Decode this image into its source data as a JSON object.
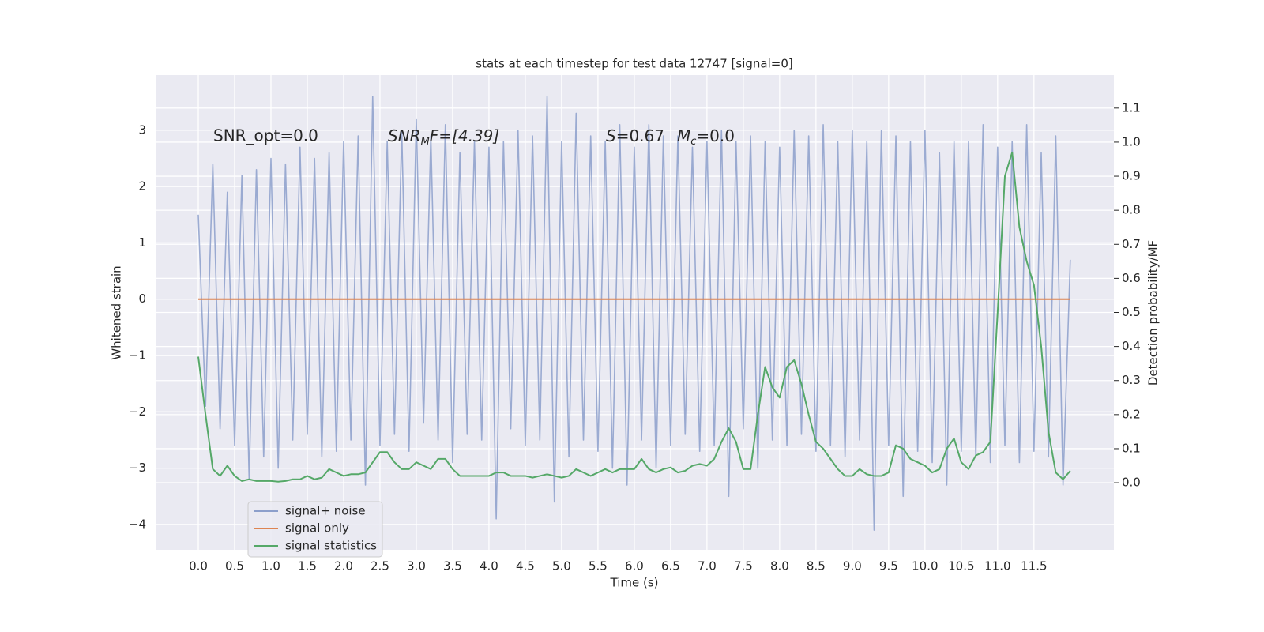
{
  "chart_data": {
    "type": "line",
    "title": "stats at each timestep for test data 12747 [signal=0]",
    "xlabel": "Time (s)",
    "ylabel": "Whitened strain",
    "y2label": "Detection probability/MF",
    "annotations": [
      "SNR_opt=0.0",
      [
        "SNR",
        "M",
        "F=[4.39]"
      ],
      [
        "S",
        "=0.67",
        "M",
        "c",
        "=0.0"
      ]
    ],
    "grid": true,
    "legend": "lower left",
    "xlim": [
      -0.587,
      12.6
    ],
    "ylim": [
      -4.45,
      3.98
    ],
    "y2lim": [
      -0.197,
      1.197
    ],
    "xticks": [
      {
        "value": 0,
        "label": "0.0"
      },
      {
        "value": 0.5,
        "label": "0.5"
      },
      {
        "value": 1,
        "label": "1.0"
      },
      {
        "value": 1.5,
        "label": "1.5"
      },
      {
        "value": 2,
        "label": "2.0"
      },
      {
        "value": 2.5,
        "label": "2.5"
      },
      {
        "value": 3,
        "label": "3.0"
      },
      {
        "value": 3.5,
        "label": "3.5"
      },
      {
        "value": 4,
        "label": "4.0"
      },
      {
        "value": 4.5,
        "label": "4.5"
      },
      {
        "value": 5,
        "label": "5.0"
      },
      {
        "value": 5.5,
        "label": "5.5"
      },
      {
        "value": 6,
        "label": "6.0"
      },
      {
        "value": 6.5,
        "label": "6.5"
      },
      {
        "value": 7,
        "label": "7.0"
      },
      {
        "value": 7.5,
        "label": "7.5"
      },
      {
        "value": 8,
        "label": "8.0"
      },
      {
        "value": 8.5,
        "label": "8.5"
      },
      {
        "value": 9,
        "label": "9.0"
      },
      {
        "value": 9.5,
        "label": "9.5"
      },
      {
        "value": 10,
        "label": "10.0"
      },
      {
        "value": 10.5,
        "label": "10.5"
      },
      {
        "value": 11,
        "label": "11.0"
      },
      {
        "value": 11.5,
        "label": "11.5"
      }
    ],
    "yticks": [
      {
        "value": -4,
        "label": "−4"
      },
      {
        "value": -3,
        "label": "−3"
      },
      {
        "value": -2,
        "label": "−2"
      },
      {
        "value": -1,
        "label": "−1"
      },
      0,
      1,
      2,
      3
    ],
    "y2ticks": [
      {
        "value": 0,
        "label": "0.0"
      },
      0.1,
      0.2,
      0.3,
      0.4,
      0.5,
      0.6,
      0.7,
      0.8,
      0.9,
      {
        "value": 1,
        "label": "1.0"
      },
      1.1
    ],
    "x": [
      0,
      0.1,
      0.2,
      0.3,
      0.4,
      0.5,
      0.6,
      0.7,
      0.8,
      0.9,
      1,
      1.1,
      1.2,
      1.3,
      1.4,
      1.5,
      1.6,
      1.7,
      1.8,
      1.9,
      2,
      2.1,
      2.2,
      2.3,
      2.4,
      2.5,
      2.6,
      2.7,
      2.8,
      2.9,
      3,
      3.1,
      3.2,
      3.3,
      3.4,
      3.5,
      3.6,
      3.7,
      3.8,
      3.9,
      4,
      4.1,
      4.2,
      4.3,
      4.4,
      4.5,
      4.6,
      4.7,
      4.8,
      4.9,
      5,
      5.1,
      5.2,
      5.3,
      5.4,
      5.5,
      5.6,
      5.7,
      5.8,
      5.9,
      6,
      6.1,
      6.2,
      6.3,
      6.4,
      6.5,
      6.6,
      6.7,
      6.8,
      6.9,
      7,
      7.1,
      7.2,
      7.3,
      7.4,
      7.5,
      7.6,
      7.7,
      7.8,
      7.9,
      8,
      8.1,
      8.2,
      8.3,
      8.4,
      8.5,
      8.6,
      8.7,
      8.8,
      8.9,
      9,
      9.1,
      9.2,
      9.3,
      9.4,
      9.5,
      9.6,
      9.7,
      9.8,
      9.9,
      10,
      10.1,
      10.2,
      10.3,
      10.4,
      10.5,
      10.6,
      10.7,
      10.8,
      10.9,
      11,
      11.1,
      11.2,
      11.3,
      11.4,
      11.5,
      11.6,
      11.7,
      11.8,
      11.9,
      12
    ],
    "series": [
      {
        "name": "signal+ noise",
        "color": "#8c9fcb",
        "values": [
          1.5,
          -1.9,
          2.4,
          -2.3,
          1.9,
          -2.6,
          2.2,
          -3.2,
          2.3,
          -2.8,
          2.5,
          -3.0,
          2.4,
          -2.5,
          2.7,
          -2.4,
          2.5,
          -2.8,
          2.6,
          -2.7,
          2.8,
          -2.5,
          2.9,
          -3.3,
          3.6,
          -2.6,
          2.8,
          -2.4,
          3.0,
          -2.7,
          3.2,
          -2.2,
          2.9,
          -2.5,
          3.1,
          -2.9,
          2.6,
          -2.4,
          2.8,
          -2.5,
          2.7,
          -3.9,
          2.8,
          -2.3,
          3.0,
          -2.6,
          2.9,
          -2.5,
          3.6,
          -3.6,
          2.8,
          -2.8,
          3.3,
          -2.5,
          2.9,
          -2.7,
          2.8,
          -3.0,
          3.1,
          -3.3,
          2.7,
          -2.5,
          3.1,
          -3.0,
          2.9,
          -2.6,
          2.9,
          -2.4,
          2.7,
          -2.7,
          2.8,
          -2.6,
          3.0,
          -3.5,
          2.8,
          -2.3,
          2.9,
          -3.0,
          2.8,
          -2.5,
          2.7,
          -2.6,
          3.0,
          -2.4,
          2.9,
          -2.7,
          3.1,
          -2.6,
          2.8,
          -2.8,
          3.0,
          -2.5,
          2.8,
          -4.1,
          3.0,
          -2.6,
          2.9,
          -3.5,
          2.8,
          -2.7,
          3.0,
          -2.9,
          2.6,
          -3.3,
          2.8,
          -2.7,
          2.8,
          -2.8,
          3.1,
          -2.9,
          2.7,
          -2.6,
          2.8,
          -2.9,
          3.1,
          -2.7,
          2.6,
          -2.8,
          2.9,
          -3.3,
          0.7
        ]
      },
      {
        "name": "signal only",
        "color": "#dd8452",
        "values": [
          0,
          0,
          0,
          0,
          0,
          0,
          0,
          0,
          0,
          0,
          0,
          0,
          0,
          0,
          0,
          0,
          0,
          0,
          0,
          0,
          0,
          0,
          0,
          0,
          0,
          0,
          0,
          0,
          0,
          0,
          0,
          0,
          0,
          0,
          0,
          0,
          0,
          0,
          0,
          0,
          0,
          0,
          0,
          0,
          0,
          0,
          0,
          0,
          0,
          0,
          0,
          0,
          0,
          0,
          0,
          0,
          0,
          0,
          0,
          0,
          0,
          0,
          0,
          0,
          0,
          0,
          0,
          0,
          0,
          0,
          0,
          0,
          0,
          0,
          0,
          0,
          0,
          0,
          0,
          0,
          0,
          0,
          0,
          0,
          0,
          0,
          0,
          0,
          0,
          0,
          0,
          0,
          0,
          0,
          0,
          0,
          0,
          0,
          0,
          0,
          0,
          0,
          0,
          0,
          0,
          0,
          0,
          0,
          0,
          0,
          0,
          0,
          0,
          0,
          0,
          0,
          0,
          0,
          0,
          0,
          0
        ]
      },
      {
        "name": "signal statistics",
        "color": "#55a868",
        "axis": "y2",
        "values": [
          0.37,
          0.2,
          0.04,
          0.02,
          0.05,
          0.02,
          0.005,
          0.01,
          0.005,
          0.005,
          0.005,
          0.003,
          0.005,
          0.01,
          0.01,
          0.02,
          0.01,
          0.015,
          0.04,
          0.03,
          0.02,
          0.025,
          0.025,
          0.03,
          0.06,
          0.09,
          0.09,
          0.06,
          0.04,
          0.04,
          0.06,
          0.05,
          0.04,
          0.07,
          0.07,
          0.04,
          0.02,
          0.02,
          0.02,
          0.02,
          0.02,
          0.03,
          0.03,
          0.02,
          0.02,
          0.02,
          0.015,
          0.02,
          0.025,
          0.02,
          0.015,
          0.02,
          0.04,
          0.03,
          0.02,
          0.03,
          0.04,
          0.03,
          0.04,
          0.04,
          0.04,
          0.07,
          0.04,
          0.03,
          0.04,
          0.045,
          0.03,
          0.035,
          0.05,
          0.055,
          0.05,
          0.07,
          0.12,
          0.16,
          0.12,
          0.04,
          0.04,
          0.2,
          0.34,
          0.28,
          0.25,
          0.34,
          0.36,
          0.29,
          0.2,
          0.12,
          0.1,
          0.07,
          0.04,
          0.02,
          0.02,
          0.04,
          0.025,
          0.02,
          0.02,
          0.03,
          0.11,
          0.1,
          0.07,
          0.06,
          0.05,
          0.03,
          0.04,
          0.1,
          0.13,
          0.06,
          0.04,
          0.08,
          0.09,
          0.12,
          0.5,
          0.9,
          0.97,
          0.75,
          0.65,
          0.58,
          0.4,
          0.15,
          0.03,
          0.01,
          0.035
        ]
      }
    ]
  }
}
